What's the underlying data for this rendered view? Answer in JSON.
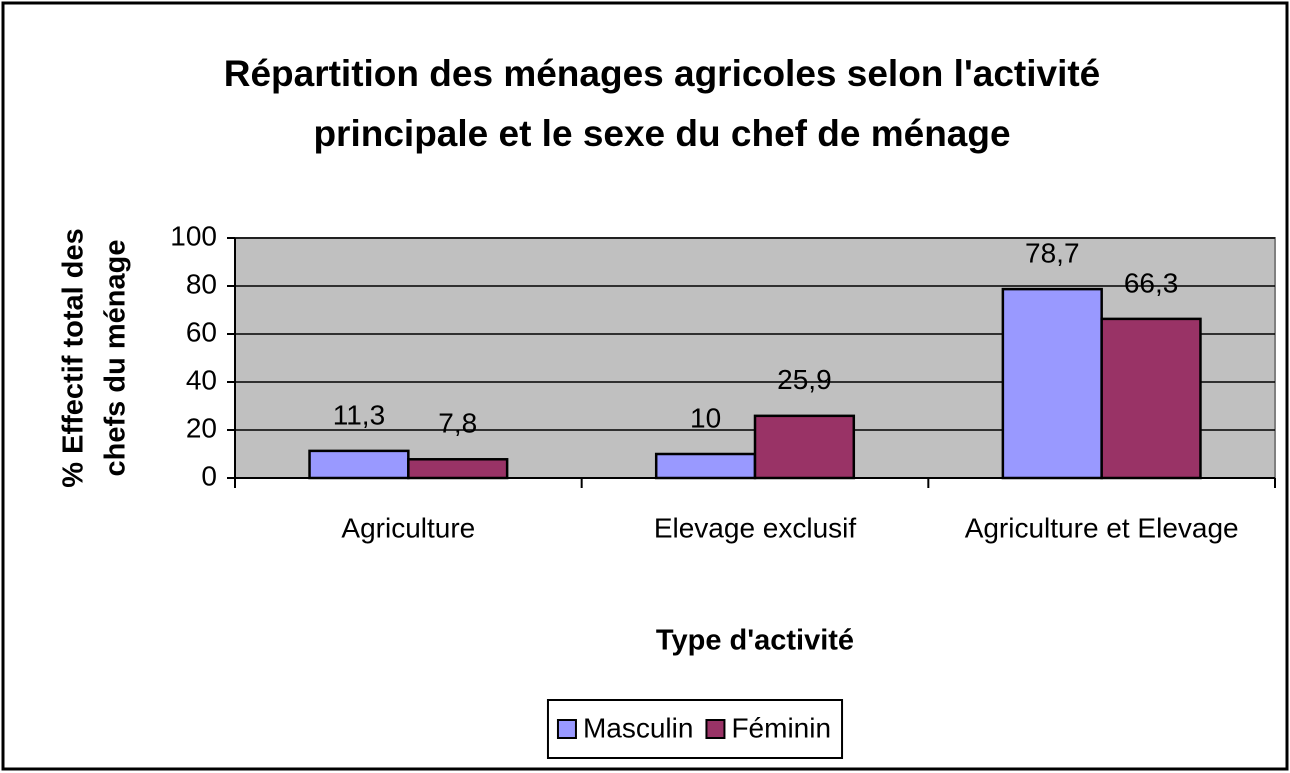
{
  "chart_data": {
    "type": "bar",
    "title": [
      "Répartition des ménages agricoles selon l'activité",
      "principale et le sexe du chef de ménage"
    ],
    "y_axis_label": [
      "% Effectif total des",
      "chefs du ménage"
    ],
    "x_axis_label": "Type d'activité",
    "categories": [
      "Agriculture",
      "Elevage exclusif",
      "Agriculture et Elevage"
    ],
    "series": [
      {
        "name": "Masculin",
        "color": "#9999ff",
        "values": [
          11.3,
          10,
          78.7
        ],
        "value_labels": [
          "11,3",
          "10",
          "78,7"
        ]
      },
      {
        "name": "Féminin",
        "color": "#993366",
        "values": [
          7.8,
          25.9,
          66.3
        ],
        "value_labels": [
          "7,8",
          "25,9",
          "66,3"
        ]
      }
    ],
    "ylim": [
      0,
      100
    ],
    "yticks": [
      0,
      20,
      40,
      60,
      80,
      100
    ],
    "grid": true,
    "legend": "bottom"
  }
}
